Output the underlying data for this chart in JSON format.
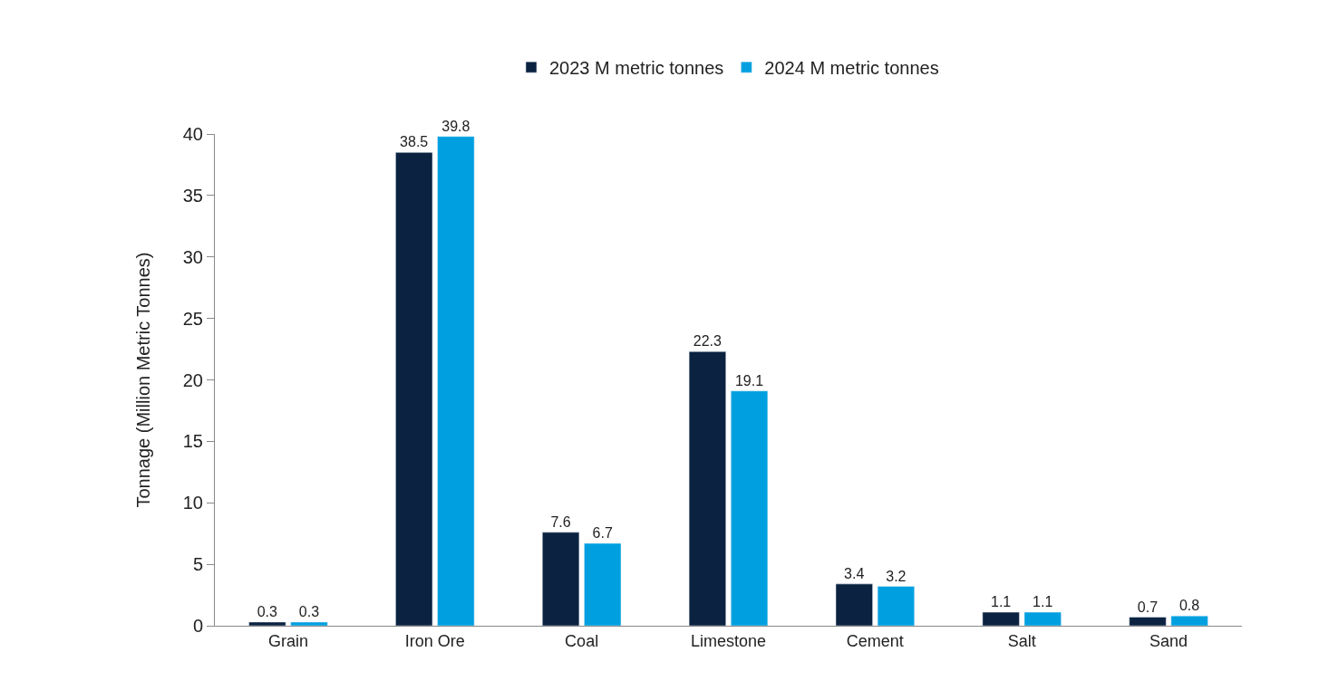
{
  "chart_data": {
    "type": "bar",
    "ylabel": "Tonnage (Million Metric Tonnes)",
    "categories": [
      "Grain",
      "Iron Ore",
      "Coal",
      "Limestone",
      "Cement",
      "Salt",
      "Sand"
    ],
    "series": [
      {
        "name": "2023 M metric tonnes",
        "color": "#0b2240",
        "values": [
          0.3,
          38.5,
          7.6,
          22.3,
          3.4,
          1.1,
          0.7
        ]
      },
      {
        "name": "2024 M metric tonnes",
        "color": "#00a0e0",
        "values": [
          0.3,
          39.8,
          6.7,
          19.1,
          3.2,
          1.1,
          0.8
        ]
      }
    ],
    "ylim": [
      0,
      40
    ],
    "yticks": [
      0,
      5,
      10,
      15,
      20,
      25,
      30,
      35,
      40
    ],
    "data_labels": true,
    "legend": "top"
  }
}
